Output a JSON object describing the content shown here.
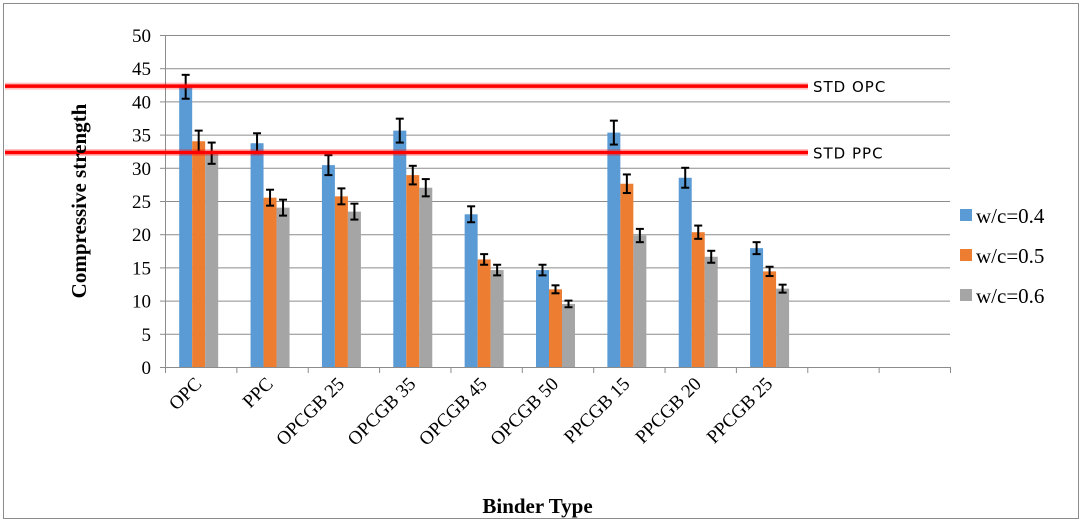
{
  "chart_data": {
    "type": "bar",
    "title": "",
    "xlabel": "Binder Type",
    "ylabel": "Compressive strength",
    "ylim": [
      0,
      50
    ],
    "yticks": [
      0,
      5,
      10,
      15,
      20,
      25,
      30,
      35,
      40,
      45,
      50
    ],
    "grid": true,
    "legend_position": "right",
    "categories": [
      "OPC",
      "PPC",
      "OPCGB 25",
      "OPCGB 35",
      "OPCGB 45",
      "OPCGB 50",
      "PPCGB 15",
      "PPCGB 20",
      "PPCGB 25",
      "",
      ""
    ],
    "series": [
      {
        "name": "w/c=0.4",
        "color": "#5b9bd5",
        "values": [
          42.2,
          33.7,
          30.4,
          35.6,
          23.0,
          14.6,
          35.3,
          28.5,
          17.9,
          null,
          null
        ],
        "errors": [
          1.8,
          1.5,
          1.5,
          1.8,
          1.2,
          0.8,
          1.8,
          1.5,
          0.9,
          null,
          null
        ]
      },
      {
        "name": "w/c=0.5",
        "color": "#ed7d31",
        "values": [
          34.0,
          25.5,
          25.7,
          28.9,
          16.2,
          11.7,
          27.6,
          20.3,
          14.4,
          null,
          null
        ],
        "errors": [
          1.6,
          1.2,
          1.2,
          1.4,
          0.8,
          0.6,
          1.4,
          1.0,
          0.7,
          null,
          null
        ]
      },
      {
        "name": "w/c=0.6",
        "color": "#a5a5a5",
        "values": [
          32.2,
          24.0,
          23.4,
          27.0,
          14.6,
          9.5,
          19.8,
          16.6,
          11.8,
          null,
          null
        ],
        "errors": [
          1.6,
          1.2,
          1.2,
          1.3,
          0.8,
          0.5,
          1.0,
          0.9,
          0.6,
          null,
          null
        ]
      }
    ],
    "reference_lines": [
      {
        "label": "STD OPC",
        "value": 42.3,
        "color": "#ff0000"
      },
      {
        "label": "STD PPC",
        "value": 32.3,
        "color": "#ff0000"
      }
    ]
  }
}
